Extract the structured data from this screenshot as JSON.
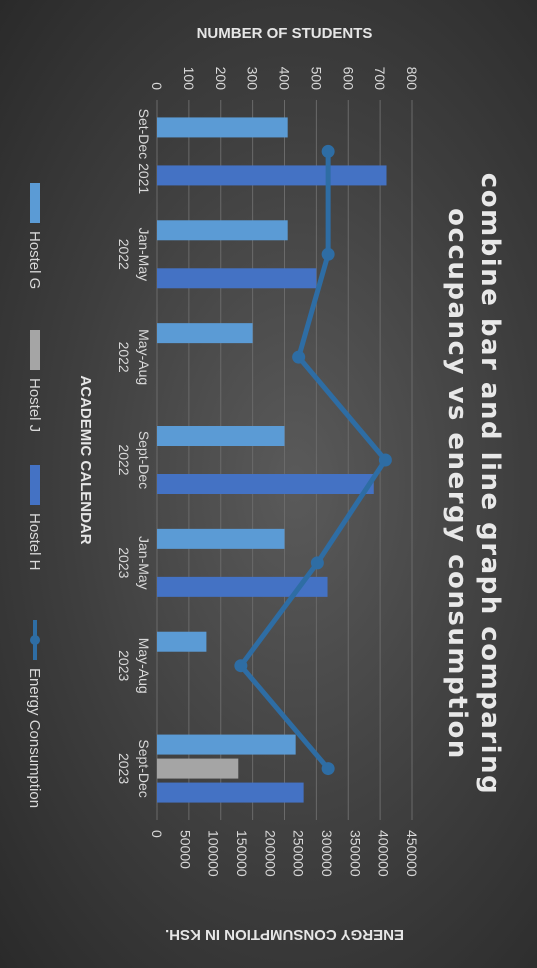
{
  "chart_data": {
    "type": "bar",
    "title_lines": [
      "combine bar and line graph comparing",
      "occupancy vs energy consumption"
    ],
    "categories": [
      [
        "Set-Dec 2021"
      ],
      [
        "Jan-May",
        "2022"
      ],
      [
        "May-Aug",
        "2022"
      ],
      [
        "Sept-Dec",
        "2022"
      ],
      [
        "Jan-May",
        "2023"
      ],
      [
        "May-Aug",
        "2023"
      ],
      [
        "Sept-Dec",
        "2023"
      ]
    ],
    "series": [
      {
        "name": "Hostel G",
        "kind": "bar",
        "axis": "students",
        "color": "#5b9bd5",
        "values": [
          410,
          410,
          300,
          400,
          400,
          155,
          435
        ]
      },
      {
        "name": "Hostel J",
        "kind": "bar",
        "axis": "students",
        "color": "#a5a5a5",
        "values": [
          null,
          null,
          null,
          null,
          null,
          null,
          255
        ]
      },
      {
        "name": "Hostel H",
        "kind": "bar",
        "axis": "students",
        "color": "#4472c4",
        "values": [
          720,
          500,
          null,
          680,
          535,
          null,
          460
        ]
      },
      {
        "name": "Energy Consumption",
        "kind": "line",
        "axis": "energy",
        "color": "#2e6da4",
        "values": [
          302000,
          302000,
          250000,
          403000,
          283000,
          148000,
          302000
        ]
      }
    ],
    "students_axis": {
      "label": "NUMBER OF STUDENTS",
      "min": 0,
      "max": 800,
      "ticks": [
        "0",
        "100",
        "200",
        "300",
        "400",
        "500",
        "600",
        "700",
        "800"
      ]
    },
    "energy_axis": {
      "label": "ENERGY CONSUMPTION IN KSH.",
      "min": 0,
      "max": 450000,
      "ticks": [
        "0",
        "50000",
        "100000",
        "150000",
        "200000",
        "250000",
        "300000",
        "350000",
        "400000",
        "450000"
      ]
    },
    "xlabel": "ACADEMIC CALENDAR",
    "grid": true,
    "legend": [
      "Hostel G",
      "Hostel J",
      "Hostel H",
      "Energy Consumption"
    ],
    "legend_position": "bottom"
  }
}
